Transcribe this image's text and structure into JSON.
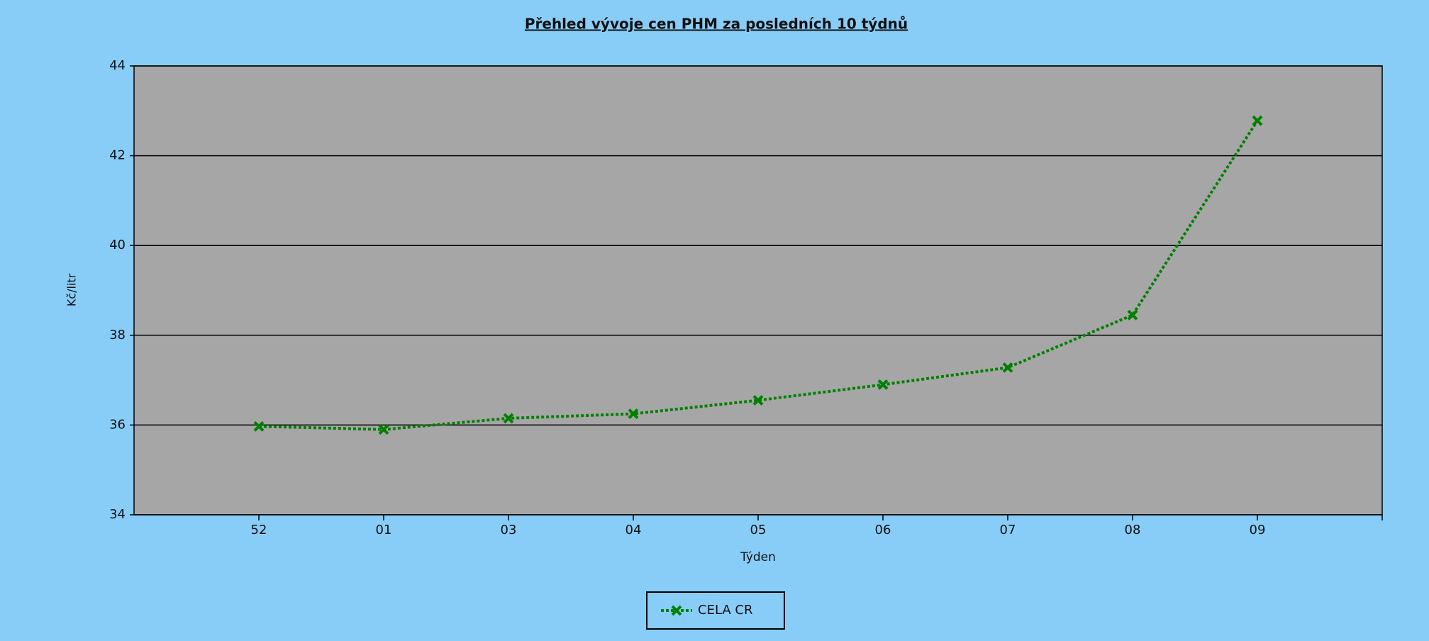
{
  "chart_data": {
    "type": "line",
    "title": "Přehled vývoje cen PHM za posledních 10 týdnů",
    "x_label": "Týden",
    "y_label": "Kč/litr",
    "categories": [
      "52",
      "01",
      "03",
      "04",
      "05",
      "06",
      "07",
      "08",
      "09"
    ],
    "series": [
      {
        "name": "CELA CR",
        "color": "#008000",
        "values": [
          35.97,
          35.9,
          36.15,
          36.25,
          36.55,
          36.9,
          37.28,
          38.45,
          42.78
        ]
      }
    ],
    "ylim": [
      34,
      44
    ],
    "yticks": [
      34,
      36,
      38,
      40,
      42,
      44
    ],
    "grid": true,
    "legend": "bottom"
  }
}
